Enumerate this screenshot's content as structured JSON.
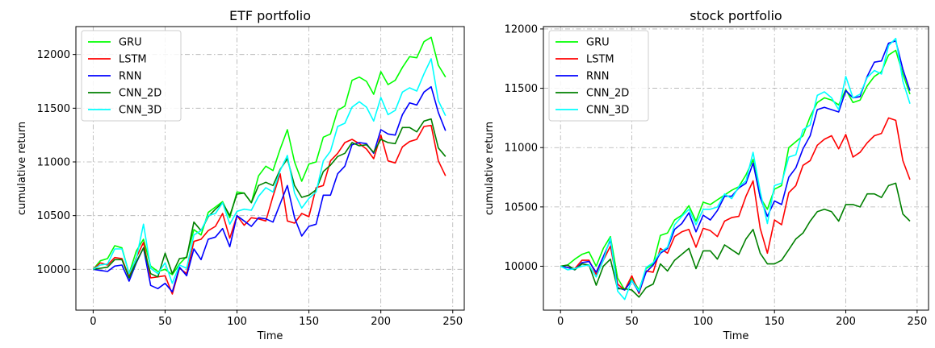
{
  "chart_data": [
    {
      "type": "line",
      "title": "ETF portfolio",
      "xlabel": "Time",
      "ylabel": "cumulative return",
      "xlim": [
        -12,
        258
      ],
      "ylim": [
        9620,
        12260
      ],
      "xticks": [
        0,
        50,
        100,
        150,
        200,
        250
      ],
      "yticks": [
        10000,
        10500,
        11000,
        11500,
        12000
      ],
      "grid": true,
      "legend": "top-left",
      "x": [
        0,
        5,
        10,
        15,
        20,
        25,
        30,
        35,
        40,
        45,
        50,
        55,
        60,
        65,
        70,
        75,
        80,
        85,
        90,
        95,
        100,
        105,
        110,
        115,
        120,
        125,
        130,
        135,
        140,
        145,
        150,
        155,
        160,
        165,
        170,
        175,
        180,
        185,
        190,
        195,
        200,
        205,
        210,
        215,
        220,
        225,
        230,
        235,
        240,
        245
      ],
      "series": [
        {
          "name": "GRU",
          "color": "#00ff00",
          "values": [
            10000,
            10080,
            10100,
            10220,
            10200,
            9960,
            10170,
            10280,
            10030,
            9980,
            10000,
            9950,
            10050,
            10120,
            10370,
            10320,
            10530,
            10580,
            10630,
            10480,
            10720,
            10710,
            10620,
            10870,
            10960,
            10920,
            11120,
            11300,
            11000,
            10820,
            10980,
            11000,
            11230,
            11260,
            11480,
            11520,
            11760,
            11790,
            11750,
            11630,
            11840,
            11720,
            11760,
            11880,
            11980,
            11970,
            12120,
            12160,
            11900,
            11790
          ]
        },
        {
          "name": "LSTM",
          "color": "#ff0000",
          "values": [
            10000,
            10060,
            10040,
            10110,
            10100,
            9930,
            10110,
            10250,
            9920,
            9930,
            9940,
            9770,
            10010,
            9960,
            10260,
            10280,
            10360,
            10400,
            10520,
            10290,
            10500,
            10410,
            10480,
            10470,
            10450,
            10680,
            10890,
            10450,
            10430,
            10520,
            10490,
            10760,
            10780,
            11010,
            11080,
            11180,
            11210,
            11170,
            11120,
            11030,
            11250,
            11010,
            10990,
            11140,
            11190,
            11210,
            11330,
            11340,
            11010,
            10870
          ]
        },
        {
          "name": "RNN",
          "color": "#0000ff",
          "values": [
            10000,
            9990,
            9980,
            10030,
            10040,
            9890,
            10060,
            10200,
            9850,
            9820,
            9870,
            9790,
            10020,
            9940,
            10190,
            10090,
            10280,
            10300,
            10380,
            10210,
            10500,
            10450,
            10400,
            10480,
            10470,
            10440,
            10610,
            10780,
            10480,
            10310,
            10400,
            10420,
            10690,
            10690,
            10890,
            10960,
            11160,
            11180,
            11170,
            11080,
            11300,
            11260,
            11250,
            11440,
            11550,
            11530,
            11650,
            11700,
            11460,
            11290
          ]
        },
        {
          "name": "CNN_2D",
          "color": "#008000",
          "values": [
            10000,
            10010,
            10020,
            10090,
            10090,
            9920,
            10070,
            10200,
            9960,
            9930,
            10150,
            9960,
            10100,
            10110,
            10440,
            10360,
            10490,
            10560,
            10620,
            10500,
            10700,
            10710,
            10620,
            10780,
            10810,
            10780,
            10930,
            11030,
            10780,
            10670,
            10690,
            10740,
            10910,
            10970,
            11050,
            11080,
            11180,
            11150,
            11160,
            11090,
            11210,
            11180,
            11170,
            11320,
            11320,
            11280,
            11380,
            11400,
            11130,
            11050
          ]
        },
        {
          "name": "CNN_3D",
          "color": "#00ffff",
          "values": [
            10000,
            10040,
            10050,
            10190,
            10190,
            9960,
            10100,
            10420,
            10010,
            9960,
            10060,
            9870,
            10040,
            10010,
            10320,
            10360,
            10500,
            10520,
            10620,
            10420,
            10540,
            10560,
            10550,
            10680,
            10760,
            10720,
            10920,
            11060,
            10710,
            10570,
            10660,
            10720,
            11010,
            11100,
            11330,
            11360,
            11510,
            11560,
            11510,
            11380,
            11600,
            11440,
            11480,
            11650,
            11690,
            11660,
            11820,
            11960,
            11570,
            11430
          ]
        }
      ]
    },
    {
      "type": "line",
      "title": "stock portfolio",
      "xlabel": "Time",
      "ylabel": "cumulative return",
      "xlim": [
        -12,
        258
      ],
      "ylim": [
        9630,
        12020
      ],
      "xticks": [
        0,
        50,
        100,
        150,
        200,
        250
      ],
      "yticks": [
        10000,
        10500,
        11000,
        11500,
        12000
      ],
      "grid": true,
      "legend": "top-left",
      "x": [
        0,
        5,
        10,
        15,
        20,
        25,
        30,
        35,
        40,
        45,
        50,
        55,
        60,
        65,
        70,
        75,
        80,
        85,
        90,
        95,
        100,
        105,
        110,
        115,
        120,
        125,
        130,
        135,
        140,
        145,
        150,
        155,
        160,
        165,
        170,
        175,
        180,
        185,
        190,
        195,
        200,
        205,
        210,
        215,
        220,
        225,
        230,
        235,
        240,
        245
      ],
      "series": [
        {
          "name": "GRU",
          "color": "#00ff00",
          "values": [
            10000,
            10010,
            10060,
            10100,
            10120,
            10000,
            10150,
            10250,
            9900,
            9800,
            9900,
            9800,
            9980,
            10020,
            10260,
            10280,
            10390,
            10430,
            10510,
            10380,
            10540,
            10520,
            10560,
            10600,
            10640,
            10670,
            10770,
            10900,
            10580,
            10480,
            10650,
            10680,
            11000,
            11050,
            11100,
            11260,
            11380,
            11420,
            11400,
            11360,
            11490,
            11380,
            11400,
            11520,
            11600,
            11640,
            11780,
            11820,
            11620,
            11450
          ]
        },
        {
          "name": "LSTM",
          "color": "#ff0000",
          "values": [
            10000,
            9990,
            9980,
            10050,
            10050,
            9930,
            10050,
            10170,
            9850,
            9800,
            9920,
            9770,
            9960,
            9950,
            10150,
            10110,
            10250,
            10290,
            10310,
            10160,
            10320,
            10300,
            10250,
            10380,
            10410,
            10420,
            10590,
            10720,
            10320,
            10110,
            10390,
            10350,
            10620,
            10680,
            10850,
            10890,
            11020,
            11070,
            11100,
            10990,
            11110,
            10920,
            10960,
            11040,
            11100,
            11120,
            11250,
            11230,
            10890,
            10730
          ]
        },
        {
          "name": "RNN",
          "color": "#0000ff",
          "values": [
            10000,
            9990,
            9970,
            10030,
            10040,
            9950,
            10080,
            10220,
            9820,
            9800,
            9880,
            9780,
            9950,
            10010,
            10110,
            10150,
            10310,
            10360,
            10450,
            10290,
            10430,
            10390,
            10470,
            10590,
            10590,
            10660,
            10700,
            10870,
            10580,
            10420,
            10550,
            10520,
            10750,
            10830,
            10990,
            11100,
            11320,
            11340,
            11320,
            11300,
            11480,
            11420,
            11430,
            11600,
            11720,
            11730,
            11880,
            11900,
            11660,
            11480
          ]
        },
        {
          "name": "CNN_2D",
          "color": "#008000",
          "values": [
            10000,
            10010,
            9970,
            10020,
            10010,
            9840,
            10000,
            10060,
            9810,
            9810,
            9800,
            9740,
            9820,
            9850,
            10020,
            9960,
            10050,
            10100,
            10150,
            9980,
            10130,
            10130,
            10060,
            10180,
            10140,
            10100,
            10230,
            10310,
            10110,
            10020,
            10020,
            10050,
            10140,
            10230,
            10280,
            10380,
            10460,
            10480,
            10460,
            10380,
            10520,
            10520,
            10500,
            10610,
            10610,
            10580,
            10680,
            10700,
            10440,
            10380
          ]
        },
        {
          "name": "CNN_3D",
          "color": "#00ffff",
          "values": [
            10000,
            9970,
            9980,
            10000,
            10010,
            9910,
            10050,
            10240,
            9790,
            9720,
            9880,
            9790,
            9990,
            10030,
            10120,
            10160,
            10350,
            10420,
            10480,
            10350,
            10480,
            10480,
            10500,
            10610,
            10570,
            10670,
            10720,
            10960,
            10630,
            10360,
            10680,
            10700,
            10920,
            10940,
            11150,
            11190,
            11440,
            11470,
            11420,
            11320,
            11600,
            11420,
            11450,
            11590,
            11650,
            11620,
            11860,
            11920,
            11560,
            11370
          ]
        }
      ]
    }
  ]
}
